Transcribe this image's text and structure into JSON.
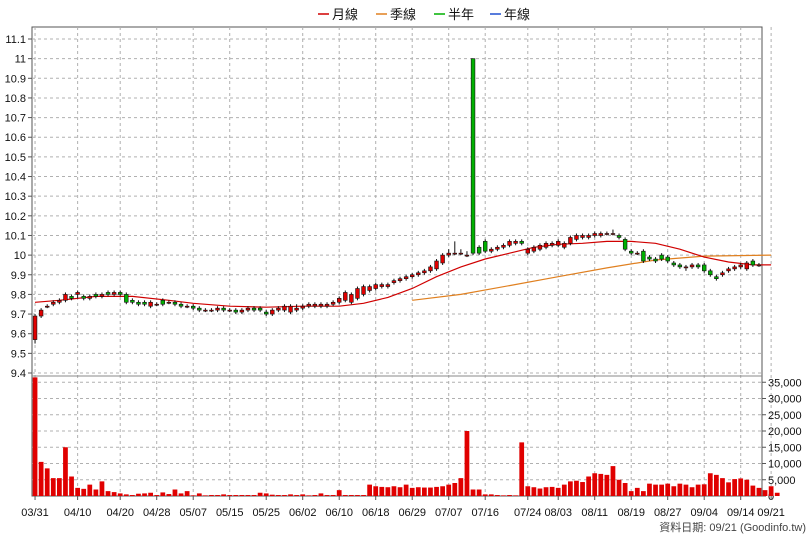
{
  "chart_data": {
    "type": "candlestick",
    "legend": [
      {
        "label": "月線",
        "color": "#d00000"
      },
      {
        "label": "季線",
        "color": "#e08020"
      },
      {
        "label": "半年",
        "color": "#00b000"
      },
      {
        "label": "年線",
        "color": "#2050d0"
      }
    ],
    "legend_position": "top-center",
    "grid": true,
    "price_axis": {
      "ylim": [
        9.35,
        11.15
      ],
      "ticks": [
        9.4,
        9.5,
        9.6,
        9.7,
        9.8,
        9.9,
        10,
        10.1,
        10.2,
        10.3,
        10.4,
        10.5,
        10.6,
        10.7,
        10.8,
        10.9,
        11,
        11.1
      ],
      "tick_labels": [
        "9.4",
        "9.5",
        "9.6",
        "9.7",
        "9.8",
        "9.9",
        "10",
        "10.1",
        "10.2",
        "10.3",
        "10.4",
        "10.5",
        "10.6",
        "10.7",
        "10.8",
        "10.9",
        "11",
        "11.1"
      ]
    },
    "volume_axis": {
      "ylim": [
        0,
        36000
      ],
      "ticks": [
        0,
        5000,
        10000,
        15000,
        20000,
        25000,
        30000,
        35000
      ],
      "tick_labels": [
        "0",
        "5,000",
        "10,000",
        "15,000",
        "20,000",
        "25,000",
        "30,000",
        "35,000"
      ]
    },
    "x_tick_labels": [
      {
        "i": 0,
        "label": "03/31"
      },
      {
        "i": 7,
        "label": "04/10"
      },
      {
        "i": 14,
        "label": "04/20"
      },
      {
        "i": 20,
        "label": "04/28"
      },
      {
        "i": 26,
        "label": "05/07"
      },
      {
        "i": 32,
        "label": "05/15"
      },
      {
        "i": 38,
        "label": "05/25"
      },
      {
        "i": 44,
        "label": "06/02"
      },
      {
        "i": 50,
        "label": "06/10"
      },
      {
        "i": 56,
        "label": "06/18"
      },
      {
        "i": 62,
        "label": "06/29"
      },
      {
        "i": 68,
        "label": "07/07"
      },
      {
        "i": 74,
        "label": "07/16"
      },
      {
        "i": 81,
        "label": "07/24"
      },
      {
        "i": 86,
        "label": "08/03"
      },
      {
        "i": 92,
        "label": "08/11"
      },
      {
        "i": 98,
        "label": "08/19"
      },
      {
        "i": 104,
        "label": "08/27"
      },
      {
        "i": 110,
        "label": "09/04"
      },
      {
        "i": 116,
        "label": "09/14"
      },
      {
        "i": 121,
        "label": "09/21"
      }
    ],
    "candles": [
      [
        9.57,
        9.69,
        9.55,
        9.7
      ],
      [
        9.69,
        9.72,
        9.68,
        9.73
      ],
      [
        9.74,
        9.74,
        9.73,
        9.75
      ],
      [
        9.75,
        9.76,
        9.74,
        9.77
      ],
      [
        9.76,
        9.77,
        9.75,
        9.78
      ],
      [
        9.77,
        9.8,
        9.76,
        9.81
      ],
      [
        9.79,
        9.78,
        9.77,
        9.8
      ],
      [
        9.8,
        9.81,
        9.78,
        9.82
      ],
      [
        9.79,
        9.78,
        9.77,
        9.8
      ],
      [
        9.78,
        9.79,
        9.77,
        9.8
      ],
      [
        9.8,
        9.79,
        9.78,
        9.81
      ],
      [
        9.79,
        9.8,
        9.78,
        9.81
      ],
      [
        9.81,
        9.8,
        9.79,
        9.82
      ],
      [
        9.8,
        9.81,
        9.79,
        9.82
      ],
      [
        9.81,
        9.8,
        9.79,
        9.82
      ],
      [
        9.8,
        9.76,
        9.75,
        9.81
      ],
      [
        9.77,
        9.76,
        9.75,
        9.78
      ],
      [
        9.76,
        9.75,
        9.74,
        9.77
      ],
      [
        9.76,
        9.75,
        9.74,
        9.77
      ],
      [
        9.74,
        9.76,
        9.73,
        9.77
      ],
      [
        9.75,
        9.75,
        9.74,
        9.76
      ],
      [
        9.77,
        9.75,
        9.74,
        9.78
      ],
      [
        9.76,
        9.76,
        9.75,
        9.77
      ],
      [
        9.76,
        9.75,
        9.74,
        9.77
      ],
      [
        9.75,
        9.74,
        9.73,
        9.76
      ],
      [
        9.74,
        9.74,
        9.73,
        9.75
      ],
      [
        9.74,
        9.73,
        9.72,
        9.75
      ],
      [
        9.73,
        9.72,
        9.71,
        9.74
      ],
      [
        9.72,
        9.72,
        9.71,
        9.73
      ],
      [
        9.72,
        9.72,
        9.71,
        9.73
      ],
      [
        9.72,
        9.73,
        9.71,
        9.74
      ],
      [
        9.73,
        9.72,
        9.71,
        9.74
      ],
      [
        9.72,
        9.72,
        9.71,
        9.73
      ],
      [
        9.72,
        9.71,
        9.7,
        9.73
      ],
      [
        9.71,
        9.72,
        9.7,
        9.73
      ],
      [
        9.72,
        9.73,
        9.71,
        9.74
      ],
      [
        9.73,
        9.72,
        9.71,
        9.74
      ],
      [
        9.73,
        9.72,
        9.71,
        9.74
      ],
      [
        9.71,
        9.7,
        9.69,
        9.72
      ],
      [
        9.7,
        9.72,
        9.69,
        9.73
      ],
      [
        9.72,
        9.73,
        9.71,
        9.74
      ],
      [
        9.72,
        9.74,
        9.71,
        9.75
      ],
      [
        9.71,
        9.74,
        9.7,
        9.75
      ],
      [
        9.72,
        9.73,
        9.71,
        9.75
      ],
      [
        9.73,
        9.74,
        9.72,
        9.75
      ],
      [
        9.74,
        9.75,
        9.73,
        9.76
      ],
      [
        9.74,
        9.75,
        9.73,
        9.76
      ],
      [
        9.74,
        9.75,
        9.73,
        9.76
      ],
      [
        9.74,
        9.75,
        9.73,
        9.76
      ],
      [
        9.75,
        9.76,
        9.74,
        9.77
      ],
      [
        9.76,
        9.78,
        9.75,
        9.79
      ],
      [
        9.77,
        9.81,
        9.76,
        9.82
      ],
      [
        9.76,
        9.8,
        9.75,
        9.81
      ],
      [
        9.78,
        9.83,
        9.77,
        9.84
      ],
      [
        9.8,
        9.84,
        9.79,
        9.85
      ],
      [
        9.82,
        9.84,
        9.81,
        9.85
      ],
      [
        9.83,
        9.85,
        9.82,
        9.86
      ],
      [
        9.84,
        9.85,
        9.83,
        9.86
      ],
      [
        9.84,
        9.85,
        9.83,
        9.86
      ],
      [
        9.86,
        9.87,
        9.85,
        9.88
      ],
      [
        9.87,
        9.88,
        9.86,
        9.89
      ],
      [
        9.88,
        9.89,
        9.87,
        9.9
      ],
      [
        9.89,
        9.9,
        9.88,
        9.91
      ],
      [
        9.9,
        9.91,
        9.89,
        9.92
      ],
      [
        9.91,
        9.92,
        9.9,
        9.93
      ],
      [
        9.92,
        9.94,
        9.91,
        9.95
      ],
      [
        9.93,
        9.97,
        9.92,
        9.98
      ],
      [
        9.96,
        10.0,
        9.95,
        10.01
      ],
      [
        10.0,
        10.01,
        9.99,
        10.03
      ],
      [
        10.01,
        10.01,
        10.0,
        10.07
      ],
      [
        10.01,
        10.01,
        10.0,
        10.03
      ],
      [
        10.0,
        10.0,
        9.99,
        10.02
      ],
      [
        11.0,
        10.01,
        10.0,
        11.0
      ],
      [
        10.04,
        10.01,
        10.0,
        10.05
      ],
      [
        10.07,
        10.02,
        10.01,
        10.08
      ],
      [
        10.02,
        10.03,
        10.01,
        10.04
      ],
      [
        10.03,
        10.04,
        10.02,
        10.05
      ],
      [
        10.04,
        10.05,
        10.03,
        10.06
      ],
      [
        10.05,
        10.07,
        10.04,
        10.08
      ],
      [
        10.06,
        10.07,
        10.05,
        10.08
      ],
      [
        10.07,
        10.06,
        10.05,
        10.08
      ],
      [
        10.01,
        10.03,
        10.0,
        10.04
      ],
      [
        10.02,
        10.04,
        10.01,
        10.05
      ],
      [
        10.03,
        10.05,
        10.02,
        10.06
      ],
      [
        10.04,
        10.06,
        10.03,
        10.07
      ],
      [
        10.05,
        10.06,
        10.04,
        10.07
      ],
      [
        10.05,
        10.07,
        10.04,
        10.08
      ],
      [
        10.04,
        10.06,
        10.03,
        10.07
      ],
      [
        10.06,
        10.09,
        10.05,
        10.1
      ],
      [
        10.08,
        10.1,
        10.07,
        10.11
      ],
      [
        10.09,
        10.1,
        10.08,
        10.11
      ],
      [
        10.09,
        10.1,
        10.08,
        10.11
      ],
      [
        10.1,
        10.11,
        10.09,
        10.12
      ],
      [
        10.1,
        10.11,
        10.09,
        10.12
      ],
      [
        10.11,
        10.11,
        10.1,
        10.12
      ],
      [
        10.11,
        10.11,
        10.1,
        10.13
      ],
      [
        10.1,
        10.09,
        10.08,
        10.11
      ],
      [
        10.08,
        10.03,
        10.02,
        10.09
      ],
      [
        10.02,
        10.01,
        10.0,
        10.03
      ],
      [
        10.01,
        10.01,
        10.0,
        10.02
      ],
      [
        10.02,
        9.97,
        9.96,
        10.03
      ],
      [
        9.99,
        9.98,
        9.97,
        10.0
      ],
      [
        9.98,
        9.97,
        9.96,
        9.99
      ],
      [
        10.0,
        9.98,
        9.97,
        10.01
      ],
      [
        9.99,
        9.97,
        9.96,
        10.0
      ],
      [
        9.96,
        9.95,
        9.94,
        9.97
      ],
      [
        9.95,
        9.94,
        9.93,
        9.96
      ],
      [
        9.94,
        9.94,
        9.92,
        9.95
      ],
      [
        9.94,
        9.95,
        9.93,
        9.96
      ],
      [
        9.95,
        9.94,
        9.93,
        9.96
      ],
      [
        9.95,
        9.92,
        9.91,
        9.96
      ],
      [
        9.92,
        9.9,
        9.89,
        9.93
      ],
      [
        9.89,
        9.88,
        9.87,
        9.9
      ],
      [
        9.9,
        9.91,
        9.89,
        9.92
      ],
      [
        9.92,
        9.93,
        9.91,
        9.94
      ],
      [
        9.93,
        9.94,
        9.92,
        9.95
      ],
      [
        9.94,
        9.95,
        9.93,
        9.96
      ],
      [
        9.93,
        9.96,
        9.92,
        9.97
      ],
      [
        9.97,
        9.95,
        9.94,
        9.98
      ],
      [
        9.95,
        9.95,
        9.94,
        9.96
      ]
    ],
    "volume": [
      36500,
      10500,
      8500,
      5500,
      5500,
      15000,
      6000,
      2500,
      2200,
      3500,
      2000,
      4500,
      1500,
      1200,
      800,
      500,
      300,
      700,
      800,
      1000,
      300,
      1100,
      600,
      2000,
      800,
      1500,
      200,
      800,
      200,
      300,
      300,
      500,
      300,
      300,
      300,
      300,
      300,
      1000,
      800,
      400,
      300,
      300,
      500,
      300,
      500,
      200,
      300,
      800,
      300,
      300,
      1800,
      300,
      300,
      300,
      300,
      3500,
      3000,
      2800,
      2700,
      3000,
      2700,
      3500,
      2500,
      2700,
      2600,
      2600,
      2800,
      3000,
      3500,
      4000,
      5500,
      20000,
      2000,
      2000,
      500,
      500,
      300,
      200,
      300,
      200,
      16500,
      3000,
      2700,
      2300,
      2700,
      2800,
      2500,
      3500,
      4500,
      4700,
      4300,
      6000,
      7000,
      6800,
      6500,
      9200,
      5000,
      4000,
      1500,
      2500,
      1500,
      3800,
      3500,
      3500,
      3800,
      3000,
      3800,
      3500,
      2700,
      3500,
      3600,
      7000,
      6500,
      5500,
      4200,
      5200,
      5400,
      5000,
      3200,
      2500,
      1800,
      3000,
      1000
    ],
    "ma_month": [
      [
        0,
        9.76
      ],
      [
        4,
        9.77
      ],
      [
        10,
        9.79
      ],
      [
        16,
        9.79
      ],
      [
        22,
        9.77
      ],
      [
        26,
        9.755
      ],
      [
        32,
        9.74
      ],
      [
        38,
        9.735
      ],
      [
        44,
        9.74
      ],
      [
        50,
        9.74
      ],
      [
        54,
        9.755
      ],
      [
        58,
        9.785
      ],
      [
        62,
        9.83
      ],
      [
        66,
        9.89
      ],
      [
        70,
        9.94
      ],
      [
        74,
        9.98
      ],
      [
        78,
        10.01
      ],
      [
        82,
        10.04
      ],
      [
        86,
        10.055
      ],
      [
        90,
        10.06
      ],
      [
        94,
        10.07
      ],
      [
        98,
        10.07
      ],
      [
        102,
        10.06
      ],
      [
        106,
        10.03
      ],
      [
        110,
        9.99
      ],
      [
        114,
        9.965
      ],
      [
        118,
        9.95
      ],
      [
        121,
        9.95
      ]
    ],
    "ma_quarter": [
      [
        62,
        9.77
      ],
      [
        70,
        9.8
      ],
      [
        78,
        9.845
      ],
      [
        86,
        9.89
      ],
      [
        94,
        9.935
      ],
      [
        102,
        9.975
      ],
      [
        110,
        9.995
      ],
      [
        121,
        10.0
      ]
    ],
    "source_note": "資料日期: 09/21 (Goodinfo.tw)"
  }
}
